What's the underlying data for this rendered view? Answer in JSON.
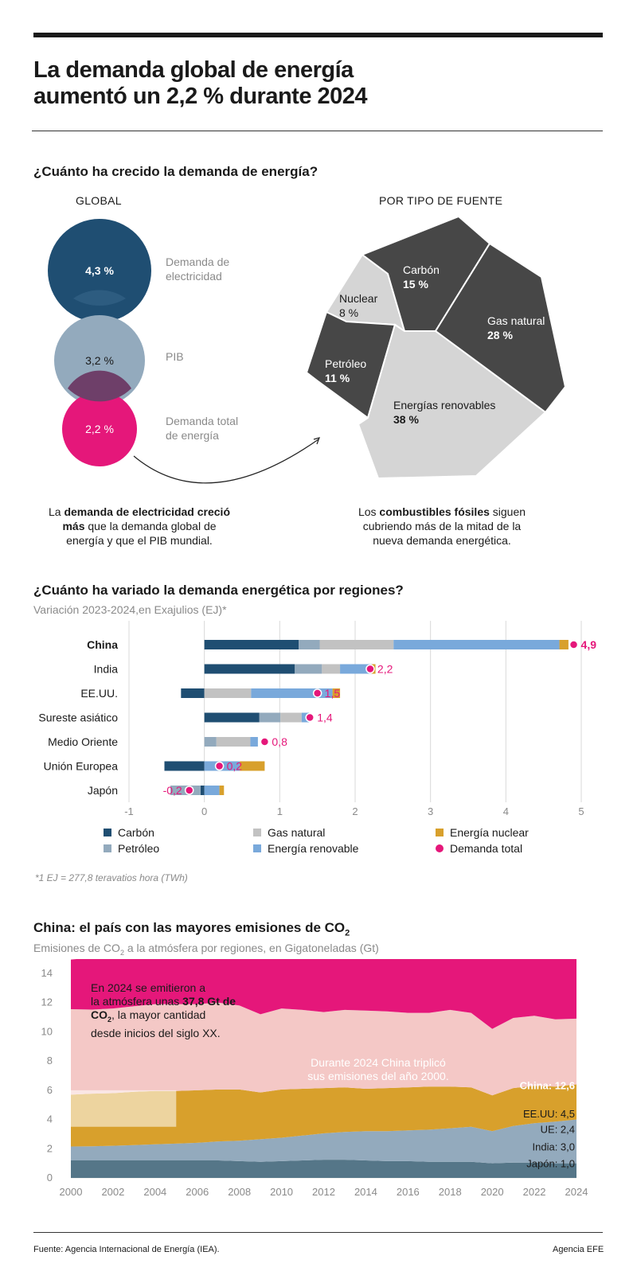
{
  "title_line1": "La demanda global de energía",
  "title_line2": "aumentó un 2,2 % durante 2024",
  "section1": {
    "heading": "¿Cuánto ha crecido la demanda de energía?",
    "global_label": "GLOBAL",
    "source_label": "POR TIPO DE FUENTE",
    "circles": [
      {
        "value": "4,3 %",
        "label_l1": "Demanda de",
        "label_l2": "electricidad",
        "color": "#1f4e72"
      },
      {
        "value": "3,2 %",
        "label_l1": "PIB",
        "label_l2": "",
        "color": "#93aabd"
      },
      {
        "value": "2,2 %",
        "label_l1": "Demanda total",
        "label_l2": "de energía",
        "color": "#e5177a"
      }
    ],
    "left_caption": {
      "pre": "La ",
      "bold1": "demanda de electricidad creció",
      "bold2": "más",
      "post1": " que la demanda global de",
      "post2": "energía y que el PIB mundial."
    },
    "right_caption": {
      "pre": "Los ",
      "bold": "combustibles fósiles",
      "post1": " siguen",
      "post2": "cubriendo más de la mitad de la",
      "post3": "nueva demanda energética."
    },
    "sources": [
      {
        "name": "Carbón",
        "value": "15 %"
      },
      {
        "name": "Nuclear",
        "value": "8 %"
      },
      {
        "name": "Gas natural",
        "value": "28 %"
      },
      {
        "name": "Petróleo",
        "value": "11 %"
      },
      {
        "name": "Energías renovables",
        "value": "38 %"
      }
    ]
  },
  "chart_data": [
    {
      "type": "stacked-bar-horizontal",
      "title": "¿Cuánto ha variado la demanda energética por regiones?",
      "subtitle": "Variación 2023-2024,en Exajulios (EJ)*",
      "footnote": "*1 EJ = 277,8 teravatios hora (TWh)",
      "xlim": [
        -1,
        5
      ],
      "xticks": [
        "-1",
        "0",
        "1",
        "2",
        "3",
        "4",
        "5"
      ],
      "categories": [
        "China",
        "India",
        "EE.UU.",
        "Sureste asiático",
        "Medio Oriente",
        "Unión Europea",
        "Japón"
      ],
      "series": [
        {
          "name": "Carbón",
          "color": "#1f4e72",
          "values": [
            1.25,
            1.2,
            -0.31,
            0.73,
            0,
            -0.53,
            -0.05
          ]
        },
        {
          "name": "Petróleo",
          "color": "#93aabd",
          "values": [
            0.28,
            0.36,
            0,
            0.28,
            0.16,
            0,
            -0.4
          ]
        },
        {
          "name": "Gas natural",
          "color": "#c2c2c2",
          "values": [
            0.98,
            0.24,
            0.62,
            0.28,
            0.45,
            0,
            0
          ]
        },
        {
          "name": "Energía renovable",
          "color": "#79a9db",
          "values": [
            2.2,
            0.42,
            1.08,
            0.1,
            0.1,
            0.47,
            0.2
          ]
        },
        {
          "name": "Energía nuclear",
          "color": "#d8a02c",
          "values": [
            0.12,
            0.05,
            0.1,
            0,
            0,
            0.33,
            0.06
          ]
        }
      ],
      "total_series": {
        "name": "Demanda total",
        "color": "#e5177a",
        "values": [
          4.9,
          2.2,
          1.5,
          1.4,
          0.8,
          0.2,
          -0.2
        ]
      },
      "total_labels": [
        "4,9",
        "2,2",
        "1,5",
        "1,4",
        "0,8",
        "0,2",
        "-0,2"
      ],
      "legend": "bottom"
    },
    {
      "type": "area",
      "title": "China: el país con las mayores emisiones de CO",
      "title_sub": "2",
      "subtitle_pre": "Emisiones de CO",
      "subtitle_sub": "2",
      "subtitle_post": " a la atmósfera por regiones, en Gigatoneladas (Gt)",
      "ylim": [
        0,
        14
      ],
      "yticks": [
        "0",
        "2",
        "4",
        "6",
        "8",
        "10",
        "12",
        "14"
      ],
      "xticks": [
        "2000",
        "2002",
        "2004",
        "2006",
        "2008",
        "2010",
        "2012",
        "2014",
        "2016",
        "2018",
        "2020",
        "2022",
        "2024"
      ],
      "x": [
        2000,
        2001,
        2002,
        2003,
        2004,
        2005,
        2006,
        2007,
        2008,
        2009,
        2010,
        2011,
        2012,
        2013,
        2014,
        2015,
        2016,
        2017,
        2018,
        2019,
        2020,
        2021,
        2022,
        2023,
        2024
      ],
      "series": [
        {
          "name": "Japón",
          "label": "Japón: 1,0",
          "color": "#557688",
          "values": [
            1.2,
            1.2,
            1.2,
            1.2,
            1.2,
            1.2,
            1.2,
            1.2,
            1.15,
            1.1,
            1.15,
            1.2,
            1.25,
            1.25,
            1.2,
            1.15,
            1.15,
            1.1,
            1.1,
            1.1,
            1.0,
            1.05,
            1.05,
            1.0,
            1.0
          ]
        },
        {
          "name": "India",
          "label": "India: 3,0",
          "color": "#93aabd",
          "values": [
            0.95,
            0.97,
            1.0,
            1.05,
            1.1,
            1.15,
            1.2,
            1.3,
            1.4,
            1.55,
            1.6,
            1.7,
            1.8,
            1.9,
            2.0,
            2.05,
            2.1,
            2.2,
            2.3,
            2.4,
            2.2,
            2.5,
            2.7,
            2.85,
            3.0
          ]
        },
        {
          "name": "UE",
          "label": "UE: 2,4",
          "color": "#d8a02c",
          "values": [
            3.55,
            3.6,
            3.6,
            3.65,
            3.65,
            3.6,
            3.6,
            3.55,
            3.5,
            3.2,
            3.3,
            3.2,
            3.1,
            3.05,
            2.9,
            2.95,
            2.95,
            2.95,
            2.85,
            2.7,
            2.45,
            2.6,
            2.55,
            2.4,
            2.4
          ]
        },
        {
          "name": "EE.UU",
          "label": "EE.UU: 4,5",
          "color": "#f4c8c6",
          "values": [
            5.85,
            5.75,
            5.8,
            5.85,
            5.95,
            5.95,
            5.9,
            5.95,
            5.75,
            5.35,
            5.55,
            5.4,
            5.2,
            5.3,
            5.35,
            5.25,
            5.1,
            5.05,
            5.25,
            5.1,
            4.55,
            4.8,
            4.8,
            4.6,
            4.5
          ]
        },
        {
          "name": "China",
          "label": "China: 12,6",
          "color": "#e5177a",
          "values": [
            3.4,
            3.55,
            3.8,
            4.4,
            5.0,
            5.6,
            6.2,
            6.8,
            7.2,
            7.7,
            8.5,
            9.2,
            9.5,
            9.7,
            9.8,
            9.7,
            9.7,
            9.9,
            10.2,
            10.5,
            10.7,
            11.2,
            11.3,
            12.1,
            12.6
          ]
        }
      ],
      "annotation1_pre": "En 2024 se emitieron a",
      "annotation1_mid": "la atmósfera unas ",
      "annotation1_bold": "37,8 Gt de",
      "annotation1_bold2": "CO",
      "annotation1_bold2_sub": "2",
      "annotation1_post": ", la mayor cantidad",
      "annotation1_end": "desde inicios del siglo XX.",
      "annotation2_l1": "Durante 2024 China triplicó",
      "annotation2_l2": "sus emisiones del año 2000."
    }
  ],
  "footer": {
    "source": "Fuente: Agencia Internacional de Energía (IEA).",
    "agency": "Agencia EFE"
  }
}
